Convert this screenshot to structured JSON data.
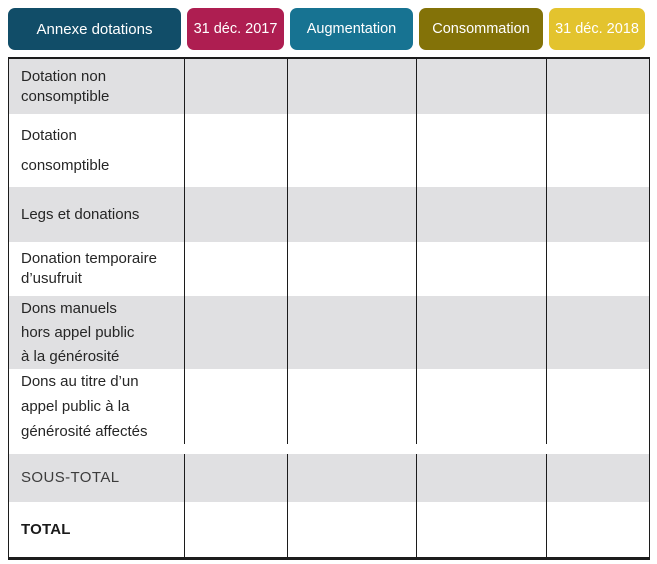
{
  "header": {
    "text_color": "#ffffff",
    "tabs": [
      {
        "label": "Annexe dotations",
        "color": "#114d68"
      },
      {
        "label": "31 déc. 2017",
        "color": "#ae1e51"
      },
      {
        "label": "Augmentation",
        "color": "#177392"
      },
      {
        "label": "Consommation",
        "color": "#837208"
      },
      {
        "label": "31 déc. 2018",
        "color": "#e3c32e"
      }
    ]
  },
  "table": {
    "column_headers": [
      "Annexe dotations",
      "31 déc. 2017",
      "Augmentation",
      "Consommation",
      "31 déc. 2018"
    ],
    "row_shade_color": "#e0e0e2",
    "border_color": "#1c1c1c",
    "rows": [
      {
        "label": "Dotation non\nconsomptible",
        "values": [
          "",
          "",
          "",
          ""
        ]
      },
      {
        "label": "Dotation\nconsomptible",
        "values": [
          "",
          "",
          "",
          ""
        ]
      },
      {
        "label": "Legs et donations",
        "values": [
          "",
          "",
          "",
          ""
        ]
      },
      {
        "label": "Donation temporaire\nd’usufruit",
        "values": [
          "",
          "",
          "",
          ""
        ]
      },
      {
        "label": "Dons manuels\nhors appel public\nà la générosité",
        "values": [
          "",
          "",
          "",
          ""
        ]
      },
      {
        "label": "Dons au titre d’un\nappel public à la\ngénérosité affectés",
        "values": [
          "",
          "",
          "",
          ""
        ]
      },
      {
        "label": "SOUS-TOTAL",
        "values": [
          "",
          "",
          "",
          ""
        ]
      },
      {
        "label": "TOTAL",
        "values": [
          "",
          "",
          "",
          ""
        ]
      }
    ]
  }
}
